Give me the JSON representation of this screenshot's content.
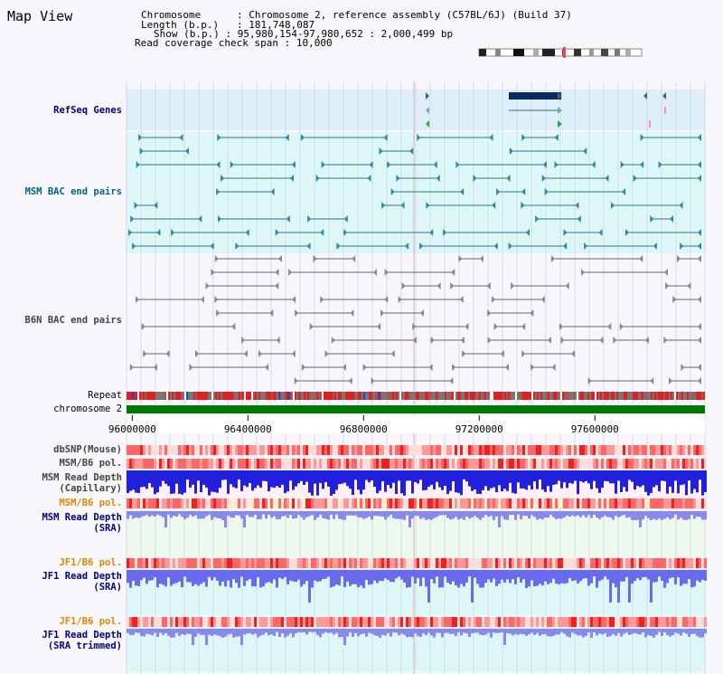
{
  "app": {
    "title": "Map View"
  },
  "header": {
    "lines": [
      {
        "key": "Chromosome",
        "value": "Chromosome 2, reference assembly (C57BL/6J) (Build 37)"
      },
      {
        "key": "Length (b.p.)",
        "value": "181,748,087"
      },
      {
        "key": "Show (b.p.)",
        "value": "95,980,154-97,980,652 : 2,000,499 bp"
      },
      {
        "key": "Read coverage check span",
        "value": "10,000"
      }
    ]
  },
  "tracks": {
    "refseq": "RefSeq Genes",
    "msm_bac": "MSM BAC end pairs",
    "b6n_bac": "B6N BAC end pairs",
    "repeat": "Repeat",
    "chromosome": "chromosome 2",
    "dbsnp": "dbSNP(Mouse)",
    "msm_b6_pol": "MSM/B6 pol.",
    "msm_depth_cap_1": "MSM Read Depth",
    "msm_depth_cap_2": "(Capillary)",
    "msm_b6_pol_2": "MSM/B6 pol.",
    "msm_depth_sra_1": "MSM Read Depth",
    "msm_depth_sra_2": "(SRA)",
    "jf1_b6_pol": "JF1/B6 pol.",
    "jf1_depth_sra_1": "JF1 Read Depth",
    "jf1_depth_sra_2": "(SRA)",
    "jf1_b6_pol_2": "JF1/B6 pol.",
    "jf1_depth_trim_1": "JF1 Read Depth",
    "jf1_depth_trim_2": "(SRA trimmed)"
  },
  "axis": {
    "ticks": [
      "96000000",
      "96400000",
      "96800000",
      "97200000",
      "97600000"
    ],
    "range": [
      95980154,
      97980652
    ]
  },
  "colors": {
    "navy": "#000080",
    "teal": "#006688",
    "orange": "#dd8800",
    "green": "#007700",
    "blue": "#1a1ae6",
    "lightblue": "#7777ee",
    "red": "#ee2222",
    "pink": "#ffbbbb"
  }
}
